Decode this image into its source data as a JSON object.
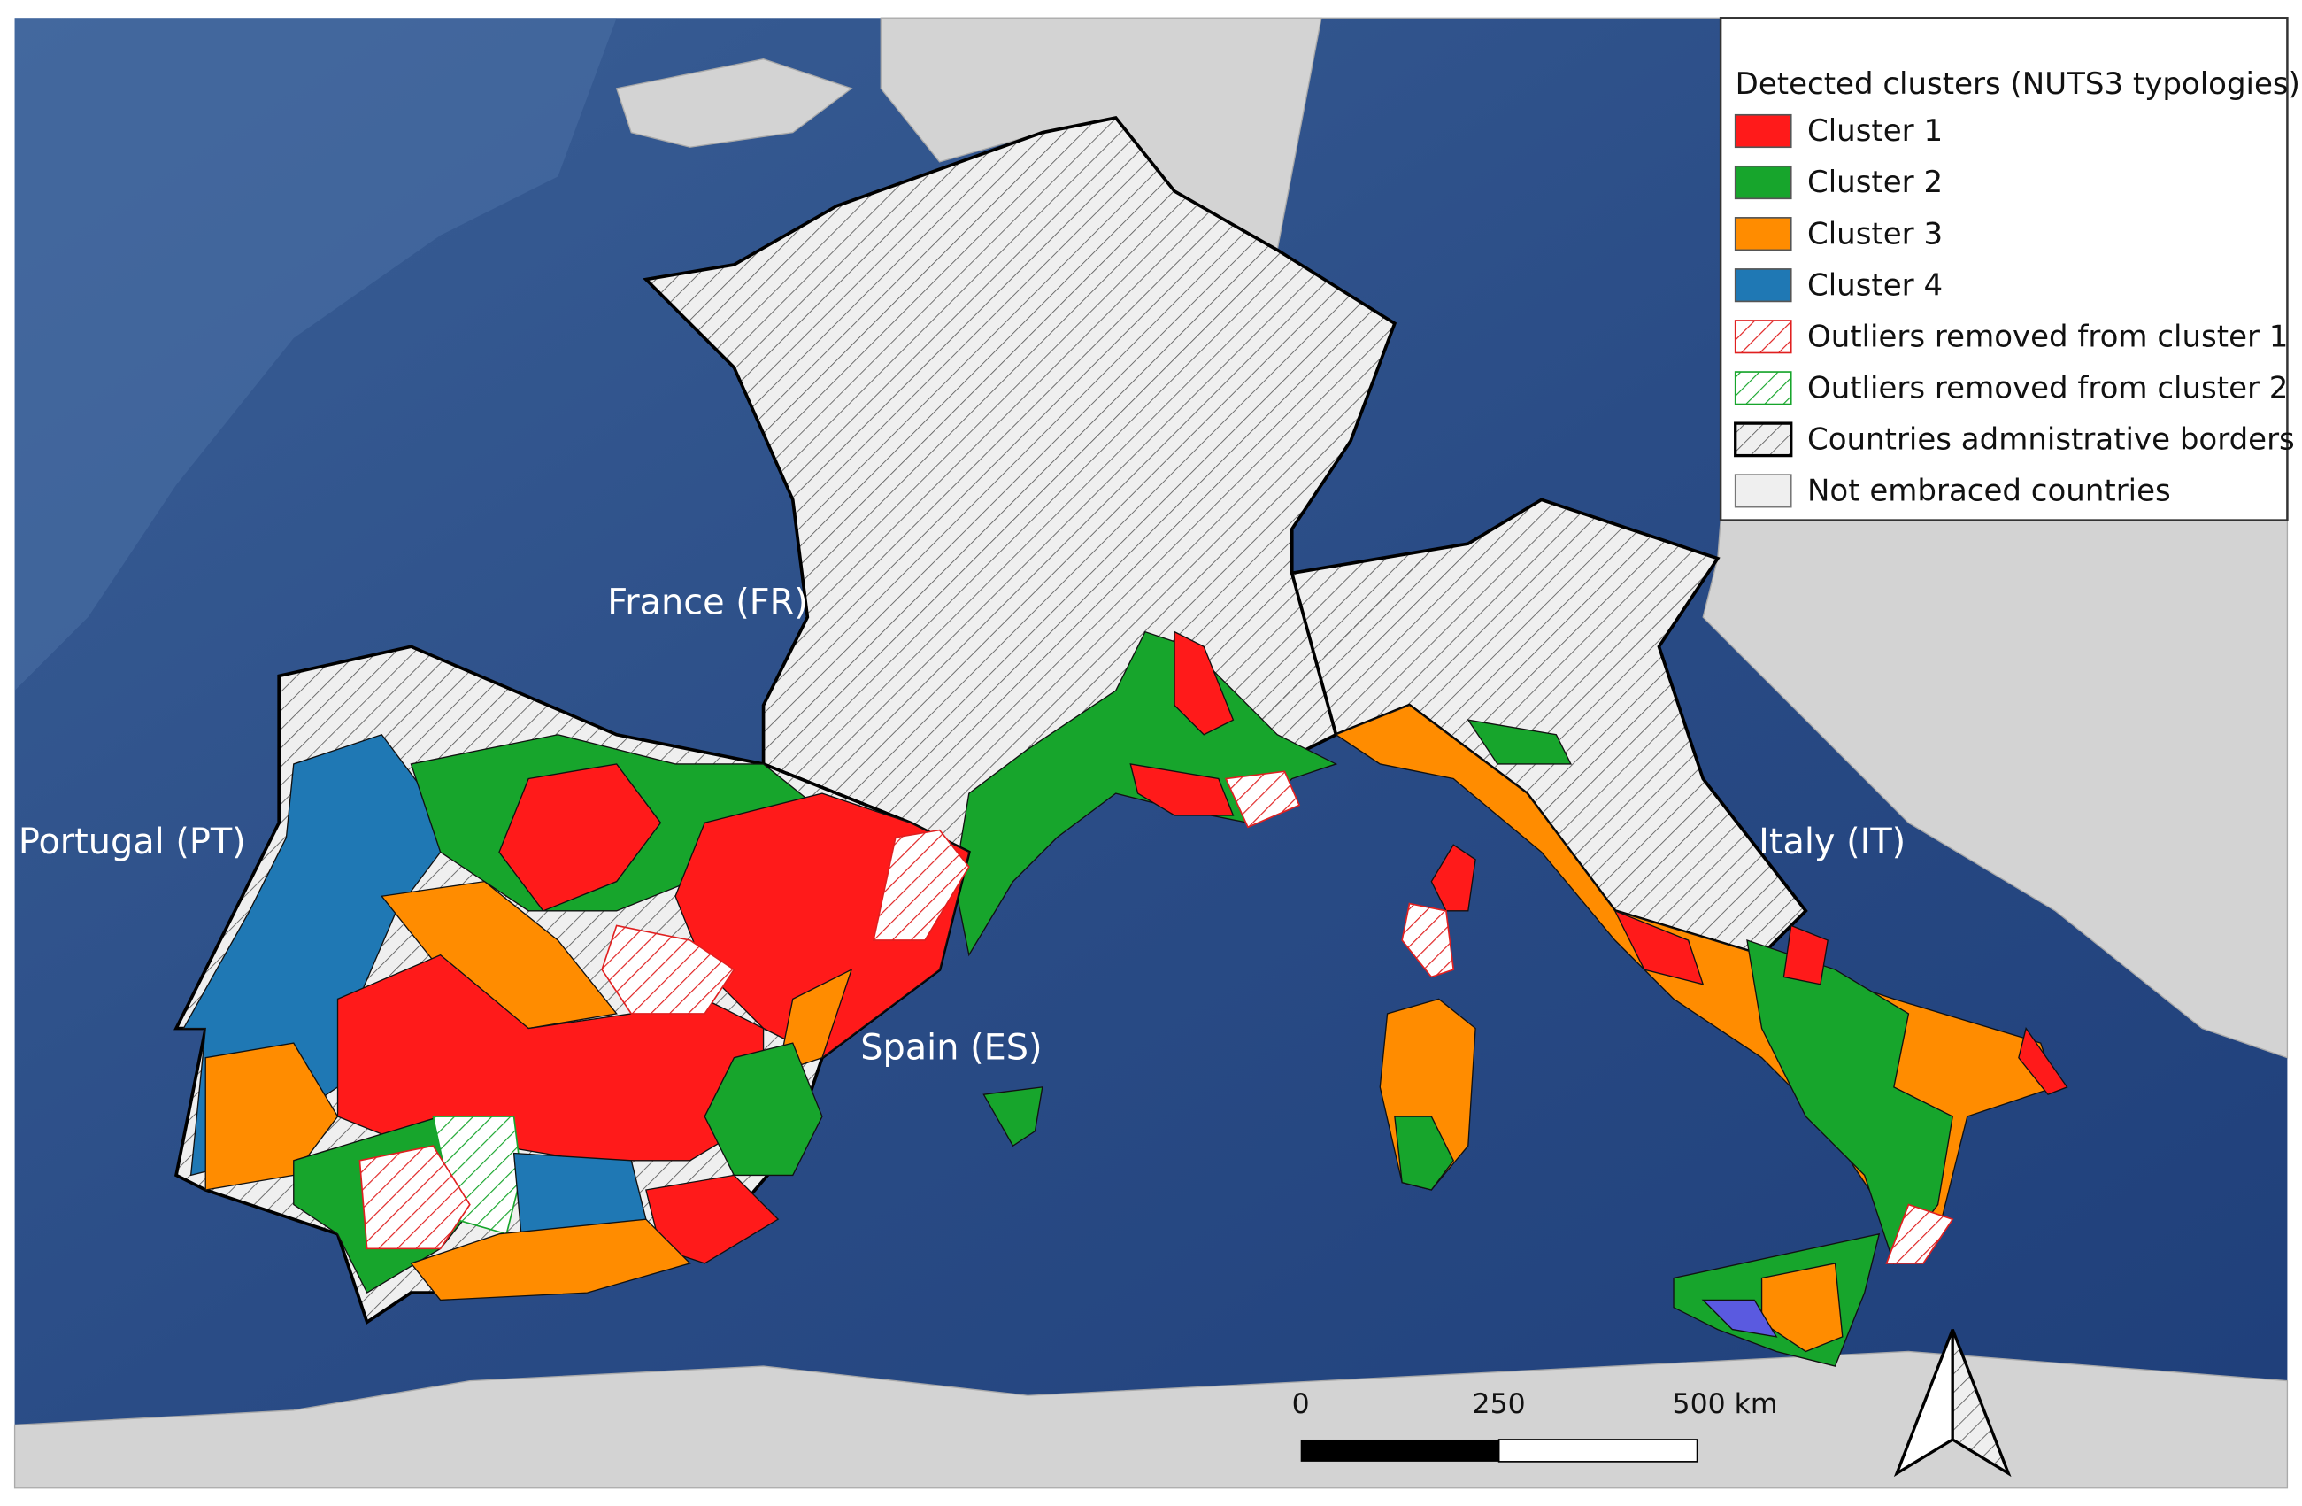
{
  "legend": {
    "title": "Detected clusters (NUTS3 typologies)",
    "items": [
      "Cluster 1",
      "Cluster 2",
      "Cluster 3",
      "Cluster 4",
      "Outliers removed from cluster 1",
      "Outliers removed from cluster 2",
      "Countries admnistrative borders",
      "Not embraced countries"
    ]
  },
  "country_labels": {
    "france": "France (FR)",
    "portugal": "Portugal (PT)",
    "spain": "Spain (ES)",
    "italy": "Italy (IT)"
  },
  "scale_bar": {
    "ticks": [
      "0",
      "250",
      "500 km"
    ]
  }
}
